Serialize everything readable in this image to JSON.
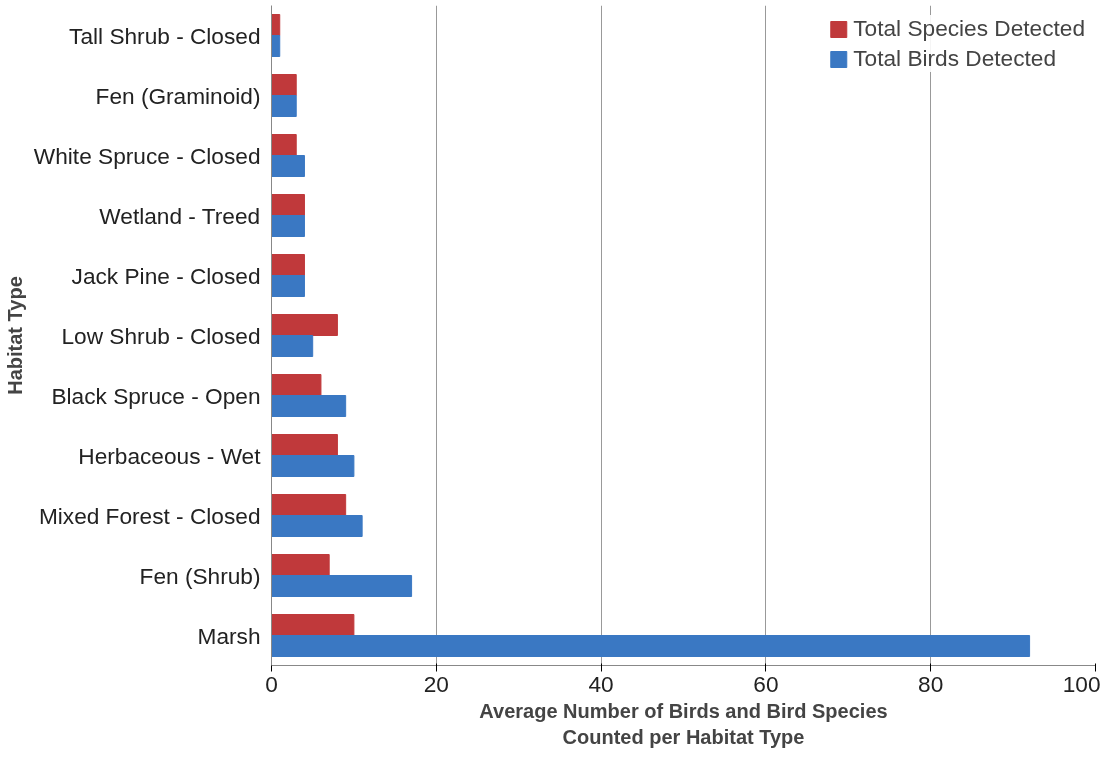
{
  "chart_data": {
    "type": "bar",
    "orientation": "horizontal",
    "xlabel": "Average Number of Birds and Bird Species\nCounted per Habitat Type",
    "ylabel": "Habitat Type",
    "categories": [
      "Tall Shrub - Closed",
      "Fen (Graminoid)",
      "White Spruce - Closed",
      "Wetland - Treed",
      "Jack Pine - Closed",
      "Low Shrub - Closed",
      "Black Spruce - Open",
      "Herbaceous - Wet",
      "Mixed Forest - Closed",
      "Fen (Shrub)",
      "Marsh"
    ],
    "series": [
      {
        "name": "Total Species Detected",
        "color": "#c0393b",
        "values": [
          1,
          3,
          3,
          4,
          4,
          8,
          6,
          8,
          9,
          7,
          10
        ]
      },
      {
        "name": "Total Birds Detected",
        "color": "#3a78c3",
        "values": [
          1,
          3,
          4,
          4,
          4,
          5,
          9,
          10,
          11,
          17,
          92
        ]
      }
    ],
    "xlim": [
      0,
      100
    ],
    "xticks": [
      0,
      20,
      40,
      60,
      80,
      100
    ],
    "grid": "x",
    "legend": "top right"
  }
}
